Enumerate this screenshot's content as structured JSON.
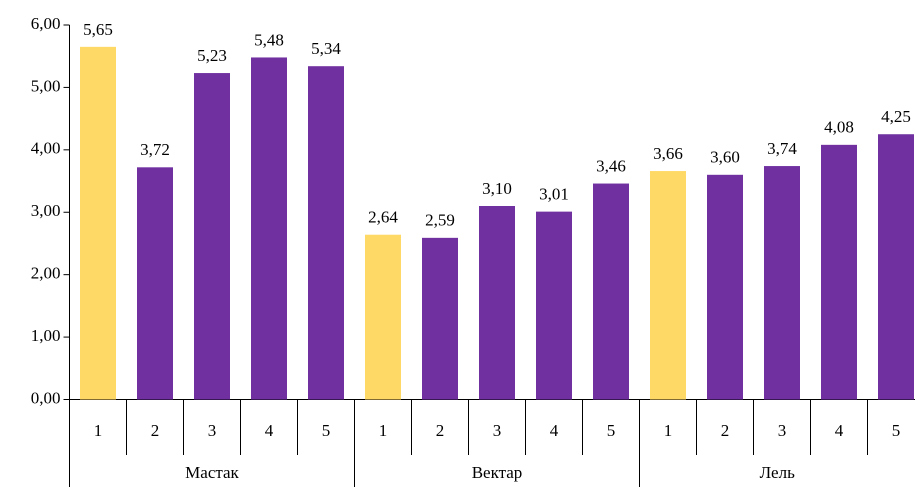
{
  "chart_data": {
    "type": "bar",
    "categories": [
      "1",
      "2",
      "3",
      "4",
      "5",
      "1",
      "2",
      "3",
      "4",
      "5",
      "1",
      "2",
      "3",
      "4",
      "5"
    ],
    "groups": [
      "Мастак",
      "Вектар",
      "Лель"
    ],
    "values": [
      5.65,
      3.72,
      5.23,
      5.48,
      5.34,
      2.64,
      2.59,
      3.1,
      3.01,
      3.46,
      3.66,
      3.6,
      3.74,
      4.08,
      4.25
    ],
    "value_labels": [
      "5,65",
      "3,72",
      "5,23",
      "5,48",
      "5,34",
      "2,64",
      "2,59",
      "3,10",
      "3,01",
      "3,46",
      "3,66",
      "3,60",
      "3,74",
      "4,08",
      "4,25"
    ],
    "colors": [
      "#ffd966",
      "#7030a0",
      "#7030a0",
      "#7030a0",
      "#7030a0",
      "#ffd966",
      "#7030a0",
      "#7030a0",
      "#7030a0",
      "#7030a0",
      "#ffd966",
      "#7030a0",
      "#7030a0",
      "#7030a0",
      "#7030a0"
    ],
    "ylim": [
      0,
      6
    ],
    "yticks": [
      {
        "value": 0,
        "label": "0,00"
      },
      {
        "value": 1,
        "label": "1,00"
      },
      {
        "value": 2,
        "label": "2,00"
      },
      {
        "value": 3,
        "label": "3,00"
      },
      {
        "value": 4,
        "label": "4,00"
      },
      {
        "value": 5,
        "label": "5,00"
      },
      {
        "value": 6,
        "label": "6,00"
      }
    ],
    "grid": false
  }
}
